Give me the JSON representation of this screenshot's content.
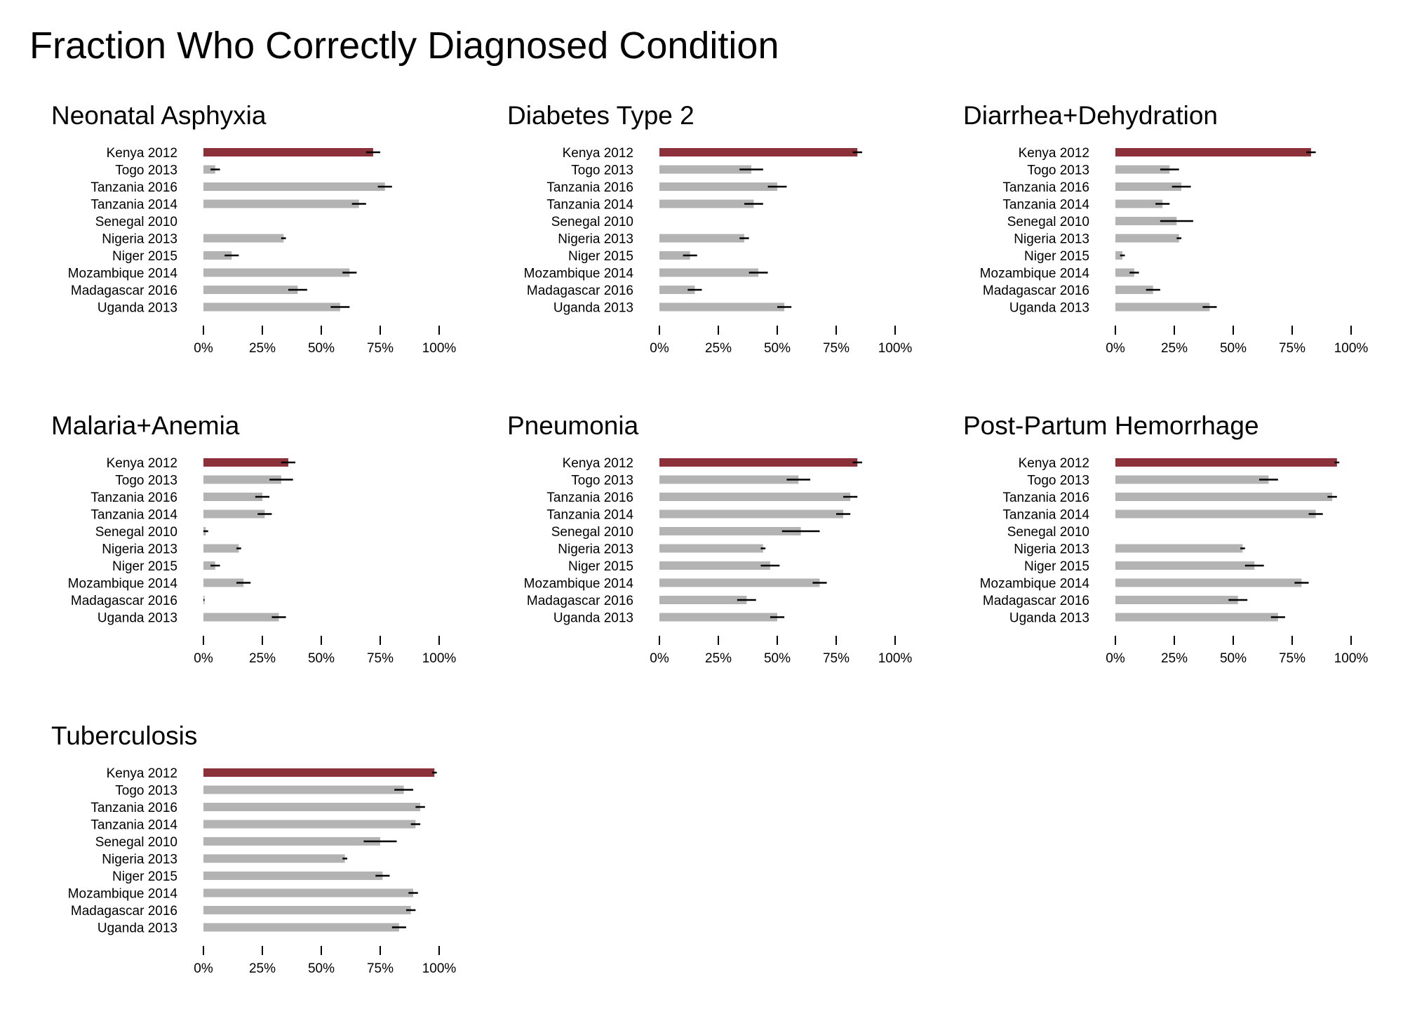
{
  "title": "Fraction Who Correctly Diagnosed Condition",
  "colors": {
    "highlight": "#8c3039",
    "bar": "#b3b3b3",
    "error": "#000000",
    "axis": "#000000"
  },
  "chart_data": [
    {
      "type": "bar",
      "title": "Neonatal Asphyxia",
      "categories": [
        "Kenya 2012",
        "Togo 2013",
        "Tanzania 2016",
        "Tanzania 2014",
        "Senegal 2010",
        "Nigeria 2013",
        "Niger 2015",
        "Mozambique 2014",
        "Madagascar 2016",
        "Uganda 2013"
      ],
      "values": [
        0.72,
        0.05,
        0.77,
        0.66,
        null,
        0.34,
        0.12,
        0.62,
        0.4,
        0.58
      ],
      "errors": [
        0.03,
        0.02,
        0.03,
        0.03,
        null,
        0.01,
        0.03,
        0.03,
        0.04,
        0.04
      ],
      "xticks": [
        "0%",
        "25%",
        "50%",
        "75%",
        "100%"
      ],
      "xlim": [
        0,
        1
      ],
      "highlight": "Kenya 2012"
    },
    {
      "type": "bar",
      "title": "Diabetes Type 2",
      "categories": [
        "Kenya 2012",
        "Togo 2013",
        "Tanzania 2016",
        "Tanzania 2014",
        "Senegal 2010",
        "Nigeria 2013",
        "Niger 2015",
        "Mozambique 2014",
        "Madagascar 2016",
        "Uganda 2013"
      ],
      "values": [
        0.84,
        0.39,
        0.5,
        0.4,
        null,
        0.36,
        0.13,
        0.42,
        0.15,
        0.53
      ],
      "errors": [
        0.02,
        0.05,
        0.04,
        0.04,
        null,
        0.02,
        0.03,
        0.04,
        0.03,
        0.03
      ],
      "xticks": [
        "0%",
        "25%",
        "50%",
        "75%",
        "100%"
      ],
      "xlim": [
        0,
        1
      ],
      "highlight": "Kenya 2012"
    },
    {
      "type": "bar",
      "title": "Diarrhea+Dehydration",
      "categories": [
        "Kenya 2012",
        "Togo 2013",
        "Tanzania 2016",
        "Tanzania 2014",
        "Senegal 2010",
        "Nigeria 2013",
        "Niger 2015",
        "Mozambique 2014",
        "Madagascar 2016",
        "Uganda 2013"
      ],
      "values": [
        0.83,
        0.23,
        0.28,
        0.2,
        0.26,
        0.27,
        0.03,
        0.08,
        0.16,
        0.4
      ],
      "errors": [
        0.02,
        0.04,
        0.04,
        0.03,
        0.07,
        0.01,
        0.01,
        0.02,
        0.03,
        0.03
      ],
      "xticks": [
        "0%",
        "25%",
        "50%",
        "75%",
        "100%"
      ],
      "xlim": [
        0,
        1
      ],
      "highlight": "Kenya 2012"
    },
    {
      "type": "bar",
      "title": "Malaria+Anemia",
      "categories": [
        "Kenya 2012",
        "Togo 2013",
        "Tanzania 2016",
        "Tanzania 2014",
        "Senegal 2010",
        "Nigeria 2013",
        "Niger 2015",
        "Mozambique 2014",
        "Madagascar 2016",
        "Uganda 2013"
      ],
      "values": [
        0.36,
        0.33,
        0.25,
        0.26,
        0.01,
        0.15,
        0.05,
        0.17,
        0.0,
        0.32
      ],
      "errors": [
        0.03,
        0.05,
        0.03,
        0.03,
        0.01,
        0.01,
        0.02,
        0.03,
        0.005,
        0.03
      ],
      "xticks": [
        "0%",
        "25%",
        "50%",
        "75%",
        "100%"
      ],
      "xlim": [
        0,
        1
      ],
      "highlight": "Kenya 2012"
    },
    {
      "type": "bar",
      "title": "Pneumonia",
      "categories": [
        "Kenya 2012",
        "Togo 2013",
        "Tanzania 2016",
        "Tanzania 2014",
        "Senegal 2010",
        "Nigeria 2013",
        "Niger 2015",
        "Mozambique 2014",
        "Madagascar 2016",
        "Uganda 2013"
      ],
      "values": [
        0.84,
        0.59,
        0.81,
        0.78,
        0.6,
        0.44,
        0.47,
        0.68,
        0.37,
        0.5
      ],
      "errors": [
        0.02,
        0.05,
        0.03,
        0.03,
        0.08,
        0.01,
        0.04,
        0.03,
        0.04,
        0.03
      ],
      "xticks": [
        "0%",
        "25%",
        "50%",
        "75%",
        "100%"
      ],
      "xlim": [
        0,
        1
      ],
      "highlight": "Kenya 2012"
    },
    {
      "type": "bar",
      "title": "Post-Partum Hemorrhage",
      "categories": [
        "Kenya 2012",
        "Togo 2013",
        "Tanzania 2016",
        "Tanzania 2014",
        "Senegal 2010",
        "Nigeria 2013",
        "Niger 2015",
        "Mozambique 2014",
        "Madagascar 2016",
        "Uganda 2013"
      ],
      "values": [
        0.94,
        0.65,
        0.92,
        0.85,
        null,
        0.54,
        0.59,
        0.79,
        0.52,
        0.69
      ],
      "errors": [
        0.01,
        0.04,
        0.02,
        0.03,
        null,
        0.01,
        0.04,
        0.03,
        0.04,
        0.03
      ],
      "xticks": [
        "0%",
        "25%",
        "50%",
        "75%",
        "100%"
      ],
      "xlim": [
        0,
        1
      ],
      "highlight": "Kenya 2012"
    },
    {
      "type": "bar",
      "title": "Tuberculosis",
      "categories": [
        "Kenya 2012",
        "Togo 2013",
        "Tanzania 2016",
        "Tanzania 2014",
        "Senegal 2010",
        "Nigeria 2013",
        "Niger 2015",
        "Mozambique 2014",
        "Madagascar 2016",
        "Uganda 2013"
      ],
      "values": [
        0.98,
        0.85,
        0.92,
        0.9,
        0.75,
        0.6,
        0.76,
        0.89,
        0.88,
        0.83
      ],
      "errors": [
        0.01,
        0.04,
        0.02,
        0.02,
        0.07,
        0.01,
        0.03,
        0.02,
        0.02,
        0.03
      ],
      "xticks": [
        "0%",
        "25%",
        "50%",
        "75%",
        "100%"
      ],
      "xlim": [
        0,
        1
      ],
      "highlight": "Kenya 2012"
    }
  ]
}
